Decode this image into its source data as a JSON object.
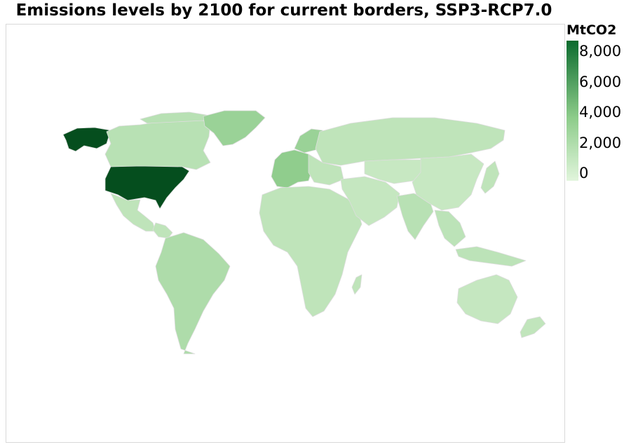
{
  "title": "Emissions levels by 2100 for current borders, SSP3-RCP7.0",
  "legend": {
    "title": "MtCO2",
    "min": -500,
    "max": 8700,
    "ticks": [
      {
        "value": 0,
        "label": "0"
      },
      {
        "value": 2000,
        "label": "2,000"
      },
      {
        "value": 4000,
        "label": "4,000"
      },
      {
        "value": 6000,
        "label": "6,000"
      },
      {
        "value": 8000,
        "label": "8,000"
      }
    ],
    "colors": {
      "low": "#e1f5dc",
      "mid": "#8dcc8a",
      "high": "#0b6b2e",
      "top": "#003812"
    }
  },
  "chart_data": {
    "type": "choropleth",
    "unit": "MtCO2",
    "regions": [
      {
        "region": "United States",
        "value": 8500
      },
      {
        "region": "Alaska",
        "value": 8500
      },
      {
        "region": "Greenland",
        "value": 3000
      },
      {
        "region": "Canada",
        "value": 1500
      },
      {
        "region": "Mexico",
        "value": 1200
      },
      {
        "region": "South America",
        "value": 2000
      },
      {
        "region": "Africa",
        "value": 1200
      },
      {
        "region": "Western Europe",
        "value": 3500
      },
      {
        "region": "Scandinavia",
        "value": 3000
      },
      {
        "region": "Russia",
        "value": 1200
      },
      {
        "region": "Middle East",
        "value": 900
      },
      {
        "region": "India",
        "value": 1500
      },
      {
        "region": "China",
        "value": 800
      },
      {
        "region": "Southeast Asia",
        "value": 1300
      },
      {
        "region": "Japan",
        "value": 1200
      },
      {
        "region": "Australia",
        "value": 900
      },
      {
        "region": "New Zealand",
        "value": 1100
      }
    ]
  }
}
